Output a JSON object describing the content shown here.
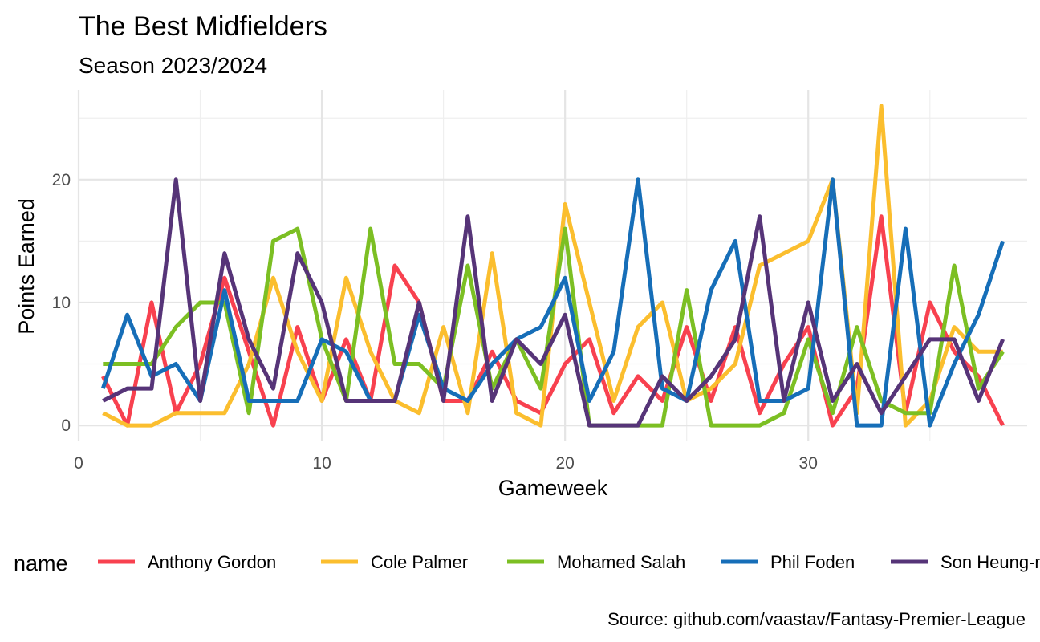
{
  "chart_data": {
    "type": "line",
    "title": "The Best Midfielders",
    "subtitle": "Season 2023/2024",
    "xlabel": "Gameweek",
    "ylabel": "Points Earned",
    "caption": "Source: github.com/vaastav/Fantasy-Premier-League",
    "xlim": [
      0,
      39
    ],
    "ylim": [
      -1.3,
      27.3
    ],
    "x_ticks": [
      0,
      10,
      20,
      30
    ],
    "y_ticks": [
      0,
      10,
      20
    ],
    "grid": true,
    "legend": {
      "position": "bottom",
      "title": "name"
    },
    "x": [
      1,
      2,
      3,
      4,
      5,
      6,
      7,
      8,
      9,
      10,
      11,
      12,
      13,
      14,
      15,
      16,
      17,
      18,
      19,
      20,
      21,
      22,
      23,
      24,
      25,
      26,
      27,
      28,
      29,
      30,
      31,
      32,
      33,
      34,
      35,
      36,
      37,
      38
    ],
    "series": [
      {
        "name": "Anthony Gordon",
        "color": "#F8414F",
        "values": [
          4,
          0,
          10,
          1,
          5,
          12,
          6,
          0,
          8,
          2,
          7,
          2,
          13,
          10,
          2,
          2,
          6,
          2,
          1,
          5,
          7,
          1,
          4,
          2,
          8,
          2,
          8,
          1,
          5,
          8,
          0,
          3,
          17,
          1,
          10,
          6,
          4,
          0
        ]
      },
      {
        "name": "Cole Palmer",
        "color": "#FBBE2E",
        "values": [
          1,
          0,
          0,
          1,
          1,
          1,
          5,
          12,
          6,
          2,
          12,
          6,
          2,
          1,
          8,
          1,
          14,
          1,
          0,
          18,
          10,
          2,
          8,
          10,
          2,
          3,
          5,
          13,
          14,
          15,
          20,
          1,
          26,
          0,
          2,
          8,
          6,
          6
        ]
      },
      {
        "name": "Mohamed Salah",
        "color": "#7CBF23",
        "values": [
          5,
          5,
          5,
          8,
          10,
          10,
          1,
          15,
          16,
          7,
          2,
          16,
          5,
          5,
          3,
          13,
          3,
          7,
          3,
          16,
          0,
          0,
          0,
          0,
          11,
          0,
          0,
          0,
          1,
          7,
          1,
          8,
          2,
          1,
          1,
          13,
          3,
          6
        ]
      },
      {
        "name": "Phil Foden",
        "color": "#166EB8",
        "values": [
          3,
          9,
          4,
          5,
          2,
          11,
          2,
          2,
          2,
          7,
          6,
          2,
          2,
          9,
          3,
          2,
          5,
          7,
          8,
          12,
          2,
          6,
          20,
          3,
          2,
          11,
          15,
          2,
          2,
          3,
          20,
          0,
          0,
          16,
          0,
          5,
          9,
          15
        ]
      },
      {
        "name": "Son Heung-min",
        "color": "#563478",
        "values": [
          2,
          3,
          3,
          20,
          2,
          14,
          7,
          3,
          14,
          10,
          2,
          2,
          2,
          10,
          2,
          17,
          2,
          7,
          5,
          9,
          0,
          0,
          0,
          4,
          2,
          4,
          7,
          17,
          2,
          10,
          2,
          5,
          1,
          4,
          7,
          7,
          2,
          7
        ]
      }
    ]
  }
}
